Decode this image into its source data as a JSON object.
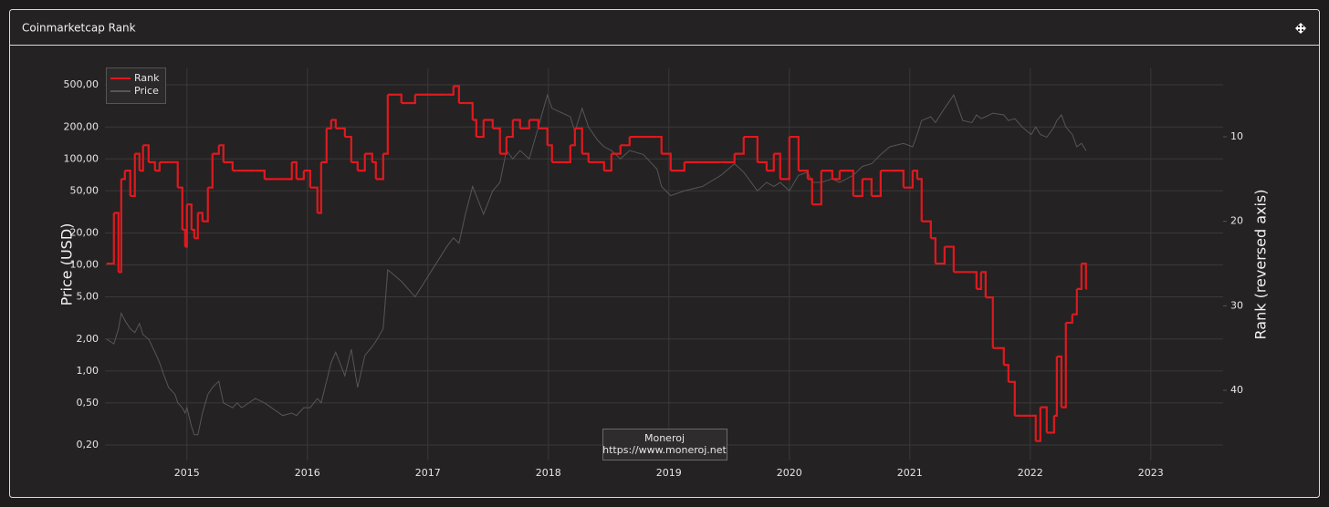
{
  "chart_data": {
    "type": "line",
    "title": "Coinmarketcap Rank",
    "ylabel": "Price (USD)",
    "y2label": "Rank (reversed axis)",
    "watermark": {
      "name": "Moneroj",
      "url": "https://www.moneroj.net"
    },
    "xlim": [
      2014.32,
      2023.6
    ],
    "xticks": [
      2015,
      2016,
      2017,
      2018,
      2019,
      2020,
      2021,
      2022,
      2023
    ],
    "ylim": [
      0.143,
      714
    ],
    "ylog": true,
    "yticks": [
      {
        "value": 0.2,
        "label": "0,20"
      },
      {
        "value": 0.5,
        "label": "0,50"
      },
      {
        "value": 1,
        "label": "1,00"
      },
      {
        "value": 2,
        "label": "2,00"
      },
      {
        "value": 5,
        "label": "5,00"
      },
      {
        "value": 10,
        "label": "10,00"
      },
      {
        "value": 20,
        "label": "20,00"
      },
      {
        "value": 50,
        "label": "50,00"
      },
      {
        "value": 100,
        "label": "100,00"
      },
      {
        "value": 200,
        "label": "200,00"
      },
      {
        "value": 500,
        "label": "500,00"
      }
    ],
    "y2lim": [
      1.9,
      48.3
    ],
    "y2reversed": true,
    "y2ticks": [
      10,
      20,
      30,
      40
    ],
    "grid": true,
    "legend": "upper left",
    "x": [
      2014.333,
      2014.394,
      2014.432,
      2014.455,
      2014.485,
      2014.53,
      2014.568,
      2014.606,
      2014.636,
      2014.682,
      2014.735,
      2014.773,
      2014.811,
      2014.848,
      2014.902,
      2014.924,
      2014.962,
      2014.985,
      2015.0,
      2015.038,
      2015.061,
      2015.091,
      2015.129,
      2015.174,
      2015.212,
      2015.265,
      2015.303,
      2015.379,
      2015.417,
      2015.455,
      2015.568,
      2015.644,
      2015.795,
      2015.871,
      2015.909,
      2015.97,
      2016.023,
      2016.083,
      2016.114,
      2016.159,
      2016.197,
      2016.235,
      2016.311,
      2016.364,
      2016.417,
      2016.477,
      2016.538,
      2016.568,
      2016.629,
      2016.667,
      2016.78,
      2016.894,
      2017.159,
      2017.212,
      2017.258,
      2017.311,
      2017.371,
      2017.402,
      2017.462,
      2017.538,
      2017.598,
      2017.652,
      2017.705,
      2017.765,
      2017.841,
      2017.917,
      2017.992,
      2018.03,
      2018.182,
      2018.22,
      2018.28,
      2018.333,
      2018.409,
      2018.462,
      2018.523,
      2018.598,
      2018.674,
      2018.788,
      2018.902,
      2018.939,
      2019.015,
      2019.129,
      2019.28,
      2019.432,
      2019.545,
      2019.621,
      2019.735,
      2019.811,
      2019.871,
      2019.924,
      2020.0,
      2020.076,
      2020.152,
      2020.189,
      2020.265,
      2020.356,
      2020.417,
      2020.53,
      2020.606,
      2020.682,
      2020.758,
      2020.833,
      2020.947,
      2021.023,
      2021.061,
      2021.098,
      2021.174,
      2021.212,
      2021.288,
      2021.364,
      2021.439,
      2021.515,
      2021.553,
      2021.591,
      2021.629,
      2021.689,
      2021.78,
      2021.818,
      2021.871,
      2021.932,
      2022.008,
      2022.045,
      2022.083,
      2022.136,
      2022.197,
      2022.22,
      2022.258,
      2022.295,
      2022.348,
      2022.386,
      2022.424,
      2022.462
    ],
    "series": [
      {
        "name": "Rank",
        "color": "#e0191f",
        "axis": "y2",
        "step": true,
        "values": [
          25,
          19,
          26,
          15,
          14,
          17,
          12,
          14,
          11,
          13,
          14,
          13,
          13,
          13,
          13,
          16,
          21,
          23,
          18,
          21,
          22,
          19,
          20,
          16,
          12,
          11,
          13,
          14,
          14,
          14,
          14,
          15,
          15,
          13,
          15,
          14,
          16,
          19,
          13,
          9,
          8,
          9,
          10,
          13,
          14,
          12,
          13,
          15,
          12,
          5,
          6,
          5,
          5,
          4,
          6,
          6,
          8,
          10,
          8,
          9,
          12,
          10,
          8,
          9,
          8,
          9,
          11,
          13,
          11,
          9,
          12,
          13,
          13,
          14,
          12,
          11,
          10,
          10,
          10,
          12,
          14,
          13,
          13,
          13,
          12,
          10,
          13,
          14,
          12,
          15,
          10,
          14,
          15,
          18,
          14,
          15,
          14,
          17,
          15,
          17,
          14,
          14,
          16,
          14,
          15,
          20,
          22,
          25,
          23,
          26,
          26,
          26,
          28,
          26,
          29,
          35,
          37,
          39,
          43,
          43,
          43,
          46,
          42,
          45,
          43,
          36,
          42,
          32,
          31,
          28,
          25,
          28
        ]
      },
      {
        "name": "Price",
        "color": "#575757",
        "values": [
          2.0,
          1.8,
          2.5,
          3.5,
          3.0,
          2.5,
          2.3,
          2.8,
          2.2,
          2.0,
          1.5,
          1.2,
          0.9,
          0.7,
          0.6,
          0.5,
          0.45,
          0.4,
          0.45,
          0.3,
          0.25,
          0.25,
          0.4,
          0.6,
          0.7,
          0.8,
          0.5,
          0.45,
          0.5,
          0.45,
          0.55,
          0.5,
          0.38,
          0.4,
          0.38,
          0.45,
          0.45,
          0.55,
          0.5,
          0.8,
          1.2,
          1.5,
          0.9,
          1.6,
          0.7,
          1.4,
          1.7,
          1.9,
          2.5,
          9,
          7,
          5,
          15,
          18,
          16,
          30,
          55,
          45,
          30,
          50,
          60,
          120,
          100,
          120,
          100,
          200,
          400,
          300,
          250,
          180,
          300,
          200,
          150,
          130,
          120,
          100,
          120,
          110,
          80,
          55,
          45,
          50,
          55,
          70,
          90,
          75,
          50,
          60,
          55,
          60,
          50,
          70,
          75,
          60,
          60,
          65,
          60,
          70,
          85,
          90,
          110,
          130,
          140,
          130,
          170,
          230,
          250,
          220,
          300,
          400,
          230,
          220,
          260,
          240,
          250,
          270,
          260,
          230,
          240,
          200,
          170,
          200,
          170,
          160,
          200,
          230,
          260,
          200,
          170,
          130,
          140,
          120
        ]
      }
    ]
  }
}
